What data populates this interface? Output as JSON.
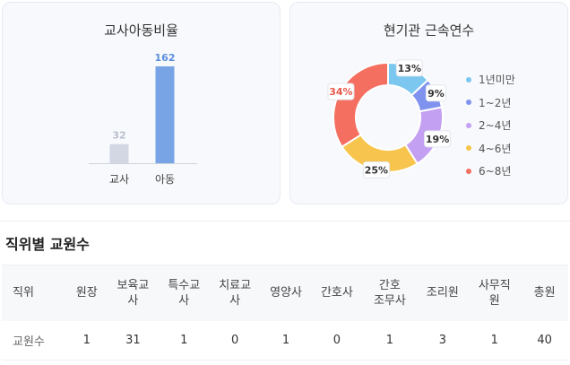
{
  "ratio_card": {
    "title": "교사아동비율"
  },
  "tenure_card": {
    "title": "현기관 근속연수"
  },
  "section_title": "직위별 교원수",
  "table": {
    "headers": [
      "직위",
      "원장",
      "보육교\n사",
      "특수교\n사",
      "치료교\n사",
      "영양사",
      "간호사",
      "간호\n조무사",
      "조리원",
      "사무직\n원",
      "총원"
    ],
    "row": [
      "교원수",
      "1",
      "31",
      "1",
      "0",
      "1",
      "0",
      "1",
      "3",
      "1",
      "40"
    ]
  },
  "colors": {
    "teacher_bar": "#d3d7e3",
    "child_bar": "#78a4e6",
    "teacher_label": "#b9bfcc",
    "child_label": "#5b8ddd"
  },
  "chart_data": [
    {
      "type": "bar",
      "title": "교사아동비율",
      "categories": [
        "교사",
        "아동"
      ],
      "values": [
        32,
        162
      ],
      "xlabel": "",
      "ylabel": "",
      "grid": false
    },
    {
      "type": "pie",
      "title": "현기관 근속연수",
      "labels": [
        "1년미만",
        "1~2년",
        "2~4년",
        "4~6년",
        "6~8년"
      ],
      "values": [
        13,
        9,
        19,
        25,
        34
      ],
      "value_labels": [
        "13%",
        "9%",
        "19%",
        "25%",
        "34%"
      ],
      "colors": [
        "#7cc7f0",
        "#7f92ee",
        "#c4a0f2",
        "#f7c54d",
        "#f56f61"
      ],
      "donut": true,
      "legend": "right"
    }
  ]
}
